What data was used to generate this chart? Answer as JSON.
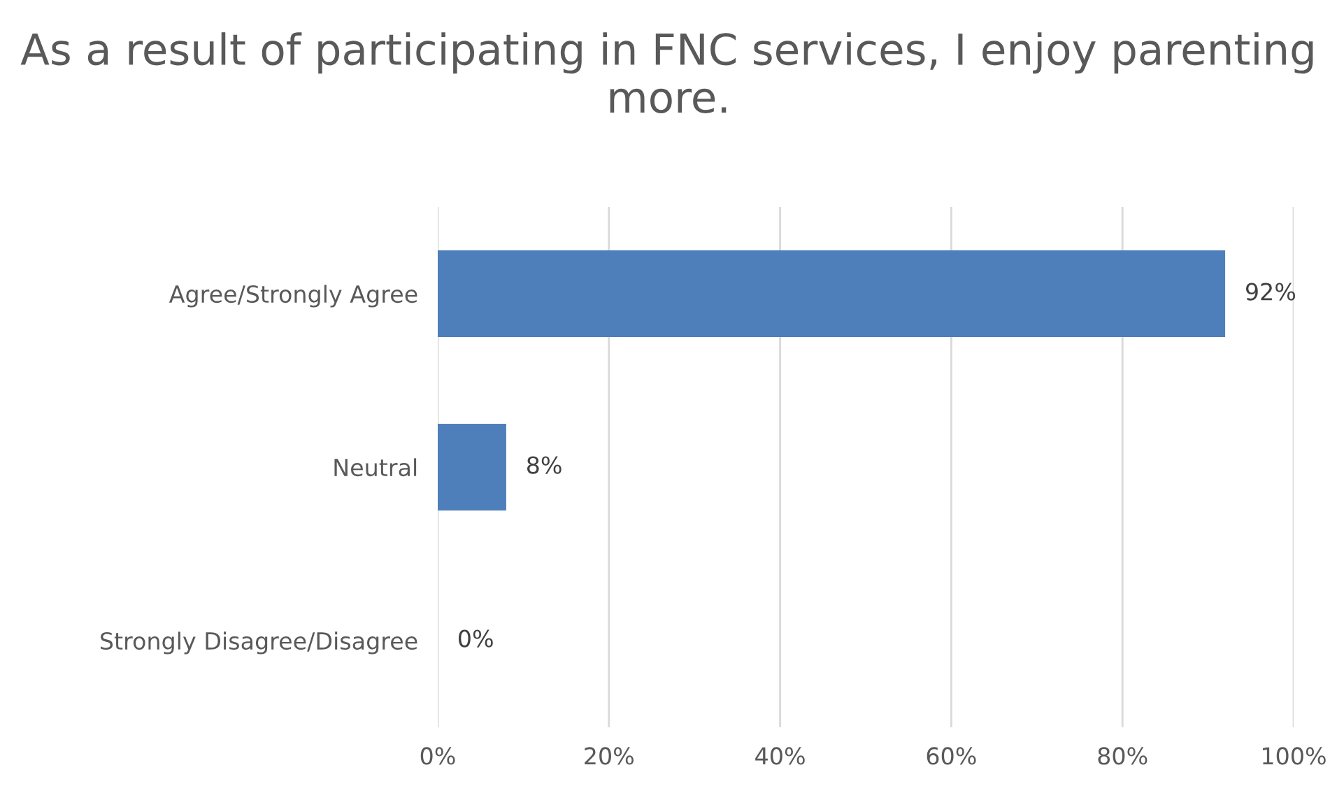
{
  "chart_data": {
    "type": "bar",
    "orientation": "horizontal",
    "title": "As a result of participating in FNC services, I enjoy parenting more.",
    "categories": [
      "Agree/Strongly Agree",
      "Neutral",
      "Strongly Disagree/Disagree"
    ],
    "values": [
      92,
      8,
      0
    ],
    "color": "#4e7fbb",
    "value_labels": [
      "92%",
      "8%",
      "0%"
    ],
    "xlim": [
      0,
      100
    ],
    "xticks": [
      {
        "value": 0,
        "label": "0%"
      },
      {
        "value": 20,
        "label": "20%"
      },
      {
        "value": 40,
        "label": "40%"
      },
      {
        "value": 60,
        "label": "60%"
      },
      {
        "value": 80,
        "label": "80%"
      },
      {
        "value": 100,
        "label": "100%"
      }
    ],
    "grid": "x",
    "legend": false
  }
}
